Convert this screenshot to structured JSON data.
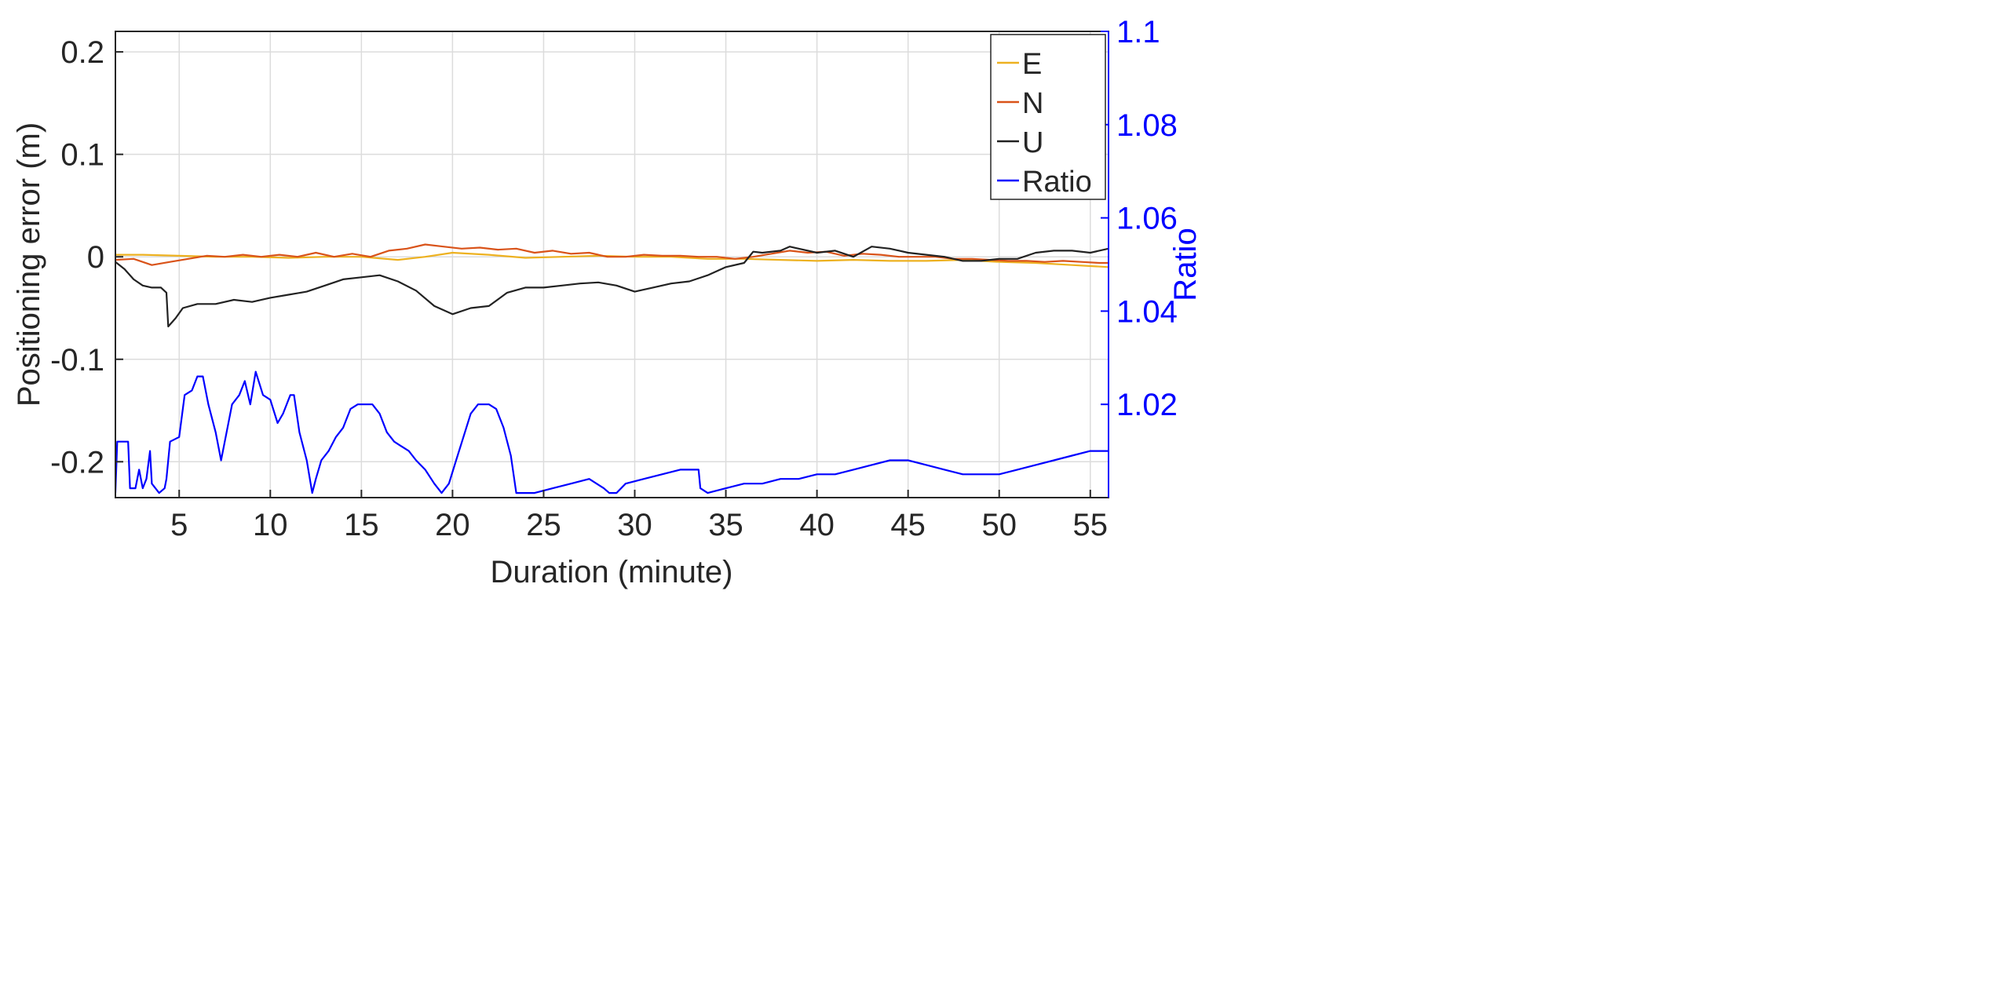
{
  "chart_data": {
    "type": "line",
    "xlabel": "Duration (minute)",
    "ylabel_left": "Positioning error (m)",
    "ylabel_right": "Ratio",
    "xlim": [
      1.5,
      56
    ],
    "ylim_left": [
      -0.235,
      0.22
    ],
    "ylim_right": [
      1.0,
      1.1
    ],
    "x_ticks": [
      5,
      10,
      15,
      20,
      25,
      30,
      35,
      40,
      45,
      50,
      55
    ],
    "y_left_ticks": [
      {
        "value": 0.2,
        "label": "0.2"
      },
      {
        "value": 0.1,
        "label": "0.1"
      },
      {
        "value": 0.0,
        "label": "0"
      },
      {
        "value": -0.1,
        "label": "-0.1"
      },
      {
        "value": -0.2,
        "label": "-0.2"
      }
    ],
    "y_right_ticks": [
      {
        "value": 1.1,
        "label": "1.1"
      },
      {
        "value": 1.08,
        "label": "1.08"
      },
      {
        "value": 1.06,
        "label": "1.06"
      },
      {
        "value": 1.04,
        "label": "1.04"
      },
      {
        "value": 1.02,
        "label": "1.02"
      }
    ],
    "grid": true,
    "legend_position": "top-right",
    "series": [
      {
        "name": "E",
        "axis": "left",
        "color": "#EDB120",
        "points": [
          [
            1.5,
            0.002
          ],
          [
            3,
            0.002
          ],
          [
            5,
            0.001
          ],
          [
            7,
            0.0
          ],
          [
            9,
            0.0
          ],
          [
            11,
            -0.001
          ],
          [
            13,
            0.0
          ],
          [
            15,
            0.0
          ],
          [
            17,
            -0.003
          ],
          [
            18.5,
            0.0
          ],
          [
            20,
            0.004
          ],
          [
            22,
            0.002
          ],
          [
            24,
            -0.001
          ],
          [
            26,
            0.0
          ],
          [
            28,
            0.001
          ],
          [
            30,
            0.0
          ],
          [
            32,
            0.0
          ],
          [
            34,
            -0.002
          ],
          [
            36,
            -0.002
          ],
          [
            38,
            -0.003
          ],
          [
            40,
            -0.004
          ],
          [
            42,
            -0.003
          ],
          [
            44,
            -0.004
          ],
          [
            46,
            -0.004
          ],
          [
            48,
            -0.003
          ],
          [
            50,
            -0.005
          ],
          [
            52,
            -0.006
          ],
          [
            54,
            -0.008
          ],
          [
            56,
            -0.01
          ]
        ]
      },
      {
        "name": "N",
        "axis": "left",
        "color": "#D95319",
        "points": [
          [
            1.5,
            -0.003
          ],
          [
            2.5,
            -0.002
          ],
          [
            3.5,
            -0.008
          ],
          [
            4.5,
            -0.005
          ],
          [
            5.5,
            -0.002
          ],
          [
            6.5,
            0.001
          ],
          [
            7.5,
            0.0
          ],
          [
            8.5,
            0.002
          ],
          [
            9.5,
            0.0
          ],
          [
            10.5,
            0.002
          ],
          [
            11.5,
            0.0
          ],
          [
            12.5,
            0.004
          ],
          [
            13.5,
            0.0
          ],
          [
            14.5,
            0.003
          ],
          [
            15.5,
            0.0
          ],
          [
            16.5,
            0.006
          ],
          [
            17.5,
            0.008
          ],
          [
            18.5,
            0.012
          ],
          [
            19.5,
            0.01
          ],
          [
            20.5,
            0.008
          ],
          [
            21.5,
            0.009
          ],
          [
            22.5,
            0.007
          ],
          [
            23.5,
            0.008
          ],
          [
            24.5,
            0.004
          ],
          [
            25.5,
            0.006
          ],
          [
            26.5,
            0.003
          ],
          [
            27.5,
            0.004
          ],
          [
            28.5,
            0.0
          ],
          [
            29.5,
            0.0
          ],
          [
            30.5,
            0.002
          ],
          [
            31.5,
            0.001
          ],
          [
            32.5,
            0.001
          ],
          [
            33.5,
            0.0
          ],
          [
            34.5,
            0.0
          ],
          [
            35.5,
            -0.002
          ],
          [
            36.5,
            0.0
          ],
          [
            37.5,
            0.003
          ],
          [
            38.5,
            0.006
          ],
          [
            39.5,
            0.004
          ],
          [
            40.5,
            0.005
          ],
          [
            41.5,
            0.001
          ],
          [
            42.5,
            0.003
          ],
          [
            43.5,
            0.002
          ],
          [
            44.5,
            0.0
          ],
          [
            45.5,
            0.0
          ],
          [
            46.5,
            0.0
          ],
          [
            47.5,
            -0.002
          ],
          [
            48.5,
            -0.002
          ],
          [
            49.5,
            -0.003
          ],
          [
            50.5,
            -0.004
          ],
          [
            51.5,
            -0.004
          ],
          [
            52.5,
            -0.005
          ],
          [
            53.5,
            -0.004
          ],
          [
            54.5,
            -0.005
          ],
          [
            55.5,
            -0.006
          ],
          [
            56,
            -0.006
          ]
        ]
      },
      {
        "name": "U",
        "axis": "left",
        "color": "#222222",
        "points": [
          [
            1.5,
            -0.005
          ],
          [
            2,
            -0.012
          ],
          [
            2.5,
            -0.022
          ],
          [
            3,
            -0.028
          ],
          [
            3.5,
            -0.03
          ],
          [
            4,
            -0.03
          ],
          [
            4.3,
            -0.035
          ],
          [
            4.4,
            -0.068
          ],
          [
            4.8,
            -0.06
          ],
          [
            5.2,
            -0.05
          ],
          [
            6,
            -0.046
          ],
          [
            7,
            -0.046
          ],
          [
            8,
            -0.042
          ],
          [
            9,
            -0.044
          ],
          [
            10,
            -0.04
          ],
          [
            11,
            -0.037
          ],
          [
            12,
            -0.034
          ],
          [
            13,
            -0.028
          ],
          [
            14,
            -0.022
          ],
          [
            15,
            -0.02
          ],
          [
            16,
            -0.018
          ],
          [
            17,
            -0.024
          ],
          [
            18,
            -0.033
          ],
          [
            19,
            -0.048
          ],
          [
            20,
            -0.056
          ],
          [
            21,
            -0.05
          ],
          [
            22,
            -0.048
          ],
          [
            23,
            -0.035
          ],
          [
            24,
            -0.03
          ],
          [
            25,
            -0.03
          ],
          [
            26,
            -0.028
          ],
          [
            27,
            -0.026
          ],
          [
            28,
            -0.025
          ],
          [
            29,
            -0.028
          ],
          [
            30,
            -0.034
          ],
          [
            31,
            -0.03
          ],
          [
            32,
            -0.026
          ],
          [
            33,
            -0.024
          ],
          [
            34,
            -0.018
          ],
          [
            35,
            -0.01
          ],
          [
            36,
            -0.006
          ],
          [
            36.5,
            0.005
          ],
          [
            37,
            0.004
          ],
          [
            38,
            0.006
          ],
          [
            38.5,
            0.01
          ],
          [
            39,
            0.008
          ],
          [
            40,
            0.004
          ],
          [
            41,
            0.006
          ],
          [
            42,
            0.0
          ],
          [
            43,
            0.01
          ],
          [
            44,
            0.008
          ],
          [
            45,
            0.004
          ],
          [
            46,
            0.002
          ],
          [
            47,
            0.0
          ],
          [
            48,
            -0.004
          ],
          [
            49,
            -0.004
          ],
          [
            50,
            -0.002
          ],
          [
            51,
            -0.002
          ],
          [
            52,
            0.004
          ],
          [
            53,
            0.006
          ],
          [
            54,
            0.006
          ],
          [
            55,
            0.004
          ],
          [
            56,
            0.008
          ]
        ]
      },
      {
        "name": "Ratio",
        "axis": "right",
        "color": "#0000FF",
        "points": [
          [
            1.5,
            1.001
          ],
          [
            1.6,
            1.012
          ],
          [
            2.2,
            1.012
          ],
          [
            2.3,
            1.002
          ],
          [
            2.6,
            1.002
          ],
          [
            2.8,
            1.006
          ],
          [
            3.0,
            1.002
          ],
          [
            3.2,
            1.004
          ],
          [
            3.4,
            1.01
          ],
          [
            3.5,
            1.003
          ],
          [
            3.9,
            1.001
          ],
          [
            4.2,
            1.002
          ],
          [
            4.3,
            1.004
          ],
          [
            4.5,
            1.012
          ],
          [
            5.0,
            1.013
          ],
          [
            5.3,
            1.022
          ],
          [
            5.7,
            1.023
          ],
          [
            6.0,
            1.026
          ],
          [
            6.3,
            1.026
          ],
          [
            6.6,
            1.02
          ],
          [
            7.0,
            1.014
          ],
          [
            7.3,
            1.008
          ],
          [
            7.5,
            1.012
          ],
          [
            7.9,
            1.02
          ],
          [
            8.3,
            1.022
          ],
          [
            8.6,
            1.025
          ],
          [
            8.9,
            1.02
          ],
          [
            9.2,
            1.027
          ],
          [
            9.6,
            1.022
          ],
          [
            10.0,
            1.021
          ],
          [
            10.4,
            1.016
          ],
          [
            10.7,
            1.018
          ],
          [
            11.1,
            1.022
          ],
          [
            11.3,
            1.022
          ],
          [
            11.6,
            1.014
          ],
          [
            12.0,
            1.008
          ],
          [
            12.3,
            1.001
          ],
          [
            12.5,
            1.004
          ],
          [
            12.8,
            1.008
          ],
          [
            13.2,
            1.01
          ],
          [
            13.6,
            1.013
          ],
          [
            14.0,
            1.015
          ],
          [
            14.4,
            1.019
          ],
          [
            14.8,
            1.02
          ],
          [
            15.2,
            1.02
          ],
          [
            15.6,
            1.02
          ],
          [
            16.0,
            1.018
          ],
          [
            16.4,
            1.014
          ],
          [
            16.8,
            1.012
          ],
          [
            17.2,
            1.011
          ],
          [
            17.6,
            1.01
          ],
          [
            18.0,
            1.008
          ],
          [
            18.5,
            1.006
          ],
          [
            19.0,
            1.003
          ],
          [
            19.4,
            1.001
          ],
          [
            19.8,
            1.003
          ],
          [
            20.2,
            1.008
          ],
          [
            20.6,
            1.013
          ],
          [
            21.0,
            1.018
          ],
          [
            21.4,
            1.02
          ],
          [
            22.0,
            1.02
          ],
          [
            22.4,
            1.019
          ],
          [
            22.8,
            1.015
          ],
          [
            23.2,
            1.009
          ],
          [
            23.5,
            1.001
          ],
          [
            24.5,
            1.001
          ],
          [
            25.5,
            1.002
          ],
          [
            26.5,
            1.003
          ],
          [
            27.5,
            1.004
          ],
          [
            28.3,
            1.002
          ],
          [
            28.6,
            1.001
          ],
          [
            29.0,
            1.001
          ],
          [
            29.5,
            1.003
          ],
          [
            30.5,
            1.004
          ],
          [
            31.5,
            1.005
          ],
          [
            32.5,
            1.006
          ],
          [
            33.5,
            1.006
          ],
          [
            33.6,
            1.002
          ],
          [
            34.0,
            1.001
          ],
          [
            35.0,
            1.002
          ],
          [
            36.0,
            1.003
          ],
          [
            37.0,
            1.003
          ],
          [
            38.0,
            1.004
          ],
          [
            39.0,
            1.004
          ],
          [
            40.0,
            1.005
          ],
          [
            41.0,
            1.005
          ],
          [
            42.0,
            1.006
          ],
          [
            43.0,
            1.007
          ],
          [
            44.0,
            1.008
          ],
          [
            45.0,
            1.008
          ],
          [
            46.0,
            1.007
          ],
          [
            47.0,
            1.006
          ],
          [
            48.0,
            1.005
          ],
          [
            49.0,
            1.005
          ],
          [
            50.0,
            1.005
          ],
          [
            51.0,
            1.006
          ],
          [
            52.0,
            1.007
          ],
          [
            53.0,
            1.008
          ],
          [
            54.0,
            1.009
          ],
          [
            55.0,
            1.01
          ],
          [
            56.0,
            1.01
          ]
        ]
      }
    ]
  }
}
